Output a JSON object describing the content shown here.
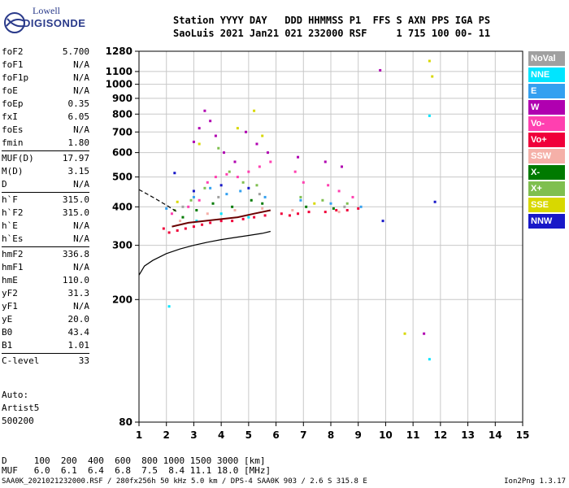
{
  "logo": {
    "line1": "Lowell",
    "line2": "DIGISONDE"
  },
  "header": {
    "labels_line": "Station YYYY DAY   DDD HHMMSS P1  FFS S AXN PPS IGA PS",
    "values_line": "SaoLuis 2021 Jan21 021 232000 RSF     1 715 100 00- 11"
  },
  "params": {
    "group1": [
      {
        "name": "foF2",
        "value": "5.700"
      },
      {
        "name": "foF1",
        "value": "N/A"
      },
      {
        "name": "foF1p",
        "value": "N/A"
      },
      {
        "name": "foE",
        "value": "N/A"
      },
      {
        "name": "foEp",
        "value": "0.35"
      },
      {
        "name": "fxI",
        "value": "6.05"
      },
      {
        "name": "foEs",
        "value": "N/A"
      },
      {
        "name": "fmin",
        "value": "1.80"
      }
    ],
    "group2": [
      {
        "name": "MUF(D)",
        "value": "17.97"
      },
      {
        "name": "M(D)",
        "value": "3.15"
      },
      {
        "name": "D",
        "value": "N/A"
      }
    ],
    "group3": [
      {
        "name": "h`F",
        "value": "315.0"
      },
      {
        "name": "h`F2",
        "value": "315.0"
      },
      {
        "name": "h`E",
        "value": "N/A"
      },
      {
        "name": "h`Es",
        "value": "N/A"
      }
    ],
    "group4": [
      {
        "name": "hmF2",
        "value": "336.8"
      },
      {
        "name": "hmF1",
        "value": "N/A"
      },
      {
        "name": "hmE",
        "value": "110.0"
      },
      {
        "name": "yF2",
        "value": "31.3"
      },
      {
        "name": "yF1",
        "value": "N/A"
      },
      {
        "name": "yE",
        "value": "20.0"
      },
      {
        "name": "B0",
        "value": "43.4"
      },
      {
        "name": "B1",
        "value": "1.01"
      }
    ],
    "group5": [
      {
        "name": "C-level",
        "value": "33"
      }
    ]
  },
  "auto": {
    "line1": "Auto:",
    "line2": "Artist5",
    "line3": "500200"
  },
  "legend": [
    {
      "label": "NoVal",
      "color": "#a0a0a0"
    },
    {
      "label": "NNE",
      "color": "#00e5ff"
    },
    {
      "label": "E",
      "color": "#33a0f0"
    },
    {
      "label": "W",
      "color": "#b000b0"
    },
    {
      "label": "Vo-",
      "color": "#ff40b0"
    },
    {
      "label": "Vo+",
      "color": "#f0003a"
    },
    {
      "label": "SSW",
      "color": "#f5b0a8"
    },
    {
      "label": "X-",
      "color": "#007a00"
    },
    {
      "label": "X+",
      "color": "#7fbf4f"
    },
    {
      "label": "SSE",
      "color": "#d8d800"
    },
    {
      "label": "NNW",
      "color": "#1818c8"
    }
  ],
  "bottom": {
    "line1": "D     100  200  400  600  800 1000 1500 3000 [km]",
    "line2": "MUF   6.0  6.1  6.4  6.8  7.5  8.4 11.1 18.0 [MHz]",
    "footer_left": "SAA0K_2021021232000.RSF / 280fx256h 50 kHz 5.0 km / DPS-4 SAA0K 903 / 2.6 S 315.8 E",
    "footer_right": "Ion2Png 1.3.17"
  },
  "chart_data": {
    "type": "scatter",
    "title": "",
    "xlabel": "",
    "ylabel": "",
    "xlim": [
      1,
      15
    ],
    "ylim": [
      80,
      1280
    ],
    "y_scale": "log",
    "x_ticks": [
      1,
      2,
      3,
      4,
      5,
      6,
      7,
      8,
      9,
      10,
      11,
      12,
      13,
      14,
      15
    ],
    "y_ticks": [
      80,
      200,
      300,
      400,
      500,
      600,
      700,
      800,
      900,
      1000,
      1100,
      1280
    ],
    "grid": true,
    "series": [
      {
        "name": "Vo+",
        "color": "#f0003a",
        "points": [
          [
            1.9,
            340
          ],
          [
            2.1,
            330
          ],
          [
            2.4,
            335
          ],
          [
            2.7,
            340
          ],
          [
            3.0,
            345
          ],
          [
            3.3,
            350
          ],
          [
            3.6,
            355
          ],
          [
            4.0,
            360
          ],
          [
            4.4,
            360
          ],
          [
            4.8,
            365
          ],
          [
            5.2,
            370
          ],
          [
            5.6,
            375
          ],
          [
            6.2,
            380
          ],
          [
            6.5,
            375
          ],
          [
            6.8,
            380
          ],
          [
            7.2,
            385
          ],
          [
            7.8,
            385
          ],
          [
            8.2,
            390
          ],
          [
            8.6,
            390
          ],
          [
            9.0,
            395
          ]
        ]
      },
      {
        "name": "Vo-",
        "color": "#ff40b0",
        "points": [
          [
            2.2,
            380
          ],
          [
            2.8,
            400
          ],
          [
            3.2,
            420
          ],
          [
            3.5,
            480
          ],
          [
            3.8,
            500
          ],
          [
            4.2,
            510
          ],
          [
            4.6,
            500
          ],
          [
            5.0,
            520
          ],
          [
            5.4,
            540
          ],
          [
            5.8,
            560
          ],
          [
            6.7,
            520
          ],
          [
            7.0,
            480
          ],
          [
            7.9,
            470
          ],
          [
            8.3,
            450
          ],
          [
            8.8,
            430
          ]
        ]
      },
      {
        "name": "W",
        "color": "#b000b0",
        "points": [
          [
            3.0,
            650
          ],
          [
            3.2,
            720
          ],
          [
            3.4,
            820
          ],
          [
            3.6,
            760
          ],
          [
            3.8,
            680
          ],
          [
            4.1,
            600
          ],
          [
            4.5,
            560
          ],
          [
            4.9,
            700
          ],
          [
            5.3,
            640
          ],
          [
            5.7,
            600
          ],
          [
            6.8,
            580
          ],
          [
            7.8,
            560
          ],
          [
            8.4,
            540
          ],
          [
            9.8,
            1110
          ],
          [
            11.4,
            155
          ]
        ]
      },
      {
        "name": "X+",
        "color": "#7fbf4f",
        "points": [
          [
            2.3,
            390
          ],
          [
            2.9,
            420
          ],
          [
            3.4,
            460
          ],
          [
            3.9,
            620
          ],
          [
            4.3,
            520
          ],
          [
            4.8,
            480
          ],
          [
            5.3,
            470
          ],
          [
            6.9,
            430
          ],
          [
            7.7,
            420
          ],
          [
            8.6,
            410
          ]
        ]
      },
      {
        "name": "X-",
        "color": "#007a00",
        "points": [
          [
            2.6,
            370
          ],
          [
            3.1,
            390
          ],
          [
            3.7,
            410
          ],
          [
            4.4,
            400
          ],
          [
            5.1,
            420
          ],
          [
            5.5,
            410
          ],
          [
            7.1,
            400
          ],
          [
            8.1,
            395
          ]
        ]
      },
      {
        "name": "E",
        "color": "#33a0f0",
        "points": [
          [
            2.0,
            395
          ],
          [
            3.0,
            430
          ],
          [
            3.6,
            460
          ],
          [
            4.2,
            440
          ],
          [
            4.7,
            450
          ],
          [
            5.6,
            430
          ],
          [
            6.9,
            420
          ],
          [
            8.0,
            410
          ],
          [
            9.1,
            400
          ]
        ]
      },
      {
        "name": "NNE",
        "color": "#00e5ff",
        "points": [
          [
            2.1,
            190
          ],
          [
            3.1,
            360
          ],
          [
            4.0,
            380
          ],
          [
            5.0,
            370
          ],
          [
            11.6,
            790
          ],
          [
            11.6,
            128
          ]
        ]
      },
      {
        "name": "SSE",
        "color": "#d8d800",
        "points": [
          [
            2.4,
            415
          ],
          [
            3.2,
            640
          ],
          [
            4.6,
            720
          ],
          [
            5.2,
            820
          ],
          [
            5.5,
            680
          ],
          [
            7.4,
            410
          ],
          [
            10.7,
            155
          ],
          [
            11.6,
            1190
          ],
          [
            11.7,
            1060
          ]
        ]
      },
      {
        "name": "SSW",
        "color": "#f5b0a8",
        "points": [
          [
            2.5,
            360
          ],
          [
            3.5,
            380
          ],
          [
            4.5,
            390
          ],
          [
            5.5,
            395
          ],
          [
            6.6,
            390
          ],
          [
            8.3,
            385
          ]
        ]
      },
      {
        "name": "NNW",
        "color": "#1818c8",
        "points": [
          [
            2.3,
            515
          ],
          [
            3.0,
            450
          ],
          [
            4.0,
            470
          ],
          [
            5.0,
            460
          ],
          [
            9.9,
            360
          ],
          [
            11.8,
            415
          ]
        ]
      },
      {
        "name": "NoVal",
        "color": "#a0a0a0",
        "points": [
          [
            2.6,
            400
          ],
          [
            3.9,
            430
          ],
          [
            5.4,
            440
          ],
          [
            8.5,
            400
          ]
        ]
      }
    ],
    "curves": [
      {
        "kind": "solid",
        "points": [
          [
            1.0,
            240
          ],
          [
            1.2,
            257
          ],
          [
            1.5,
            268
          ],
          [
            2.0,
            282
          ],
          [
            2.5,
            292
          ],
          [
            3.0,
            300
          ],
          [
            3.5,
            307
          ],
          [
            4.0,
            313
          ],
          [
            4.5,
            318
          ],
          [
            5.0,
            323
          ],
          [
            5.5,
            328
          ],
          [
            5.8,
            333
          ]
        ]
      },
      {
        "kind": "dashed",
        "points": [
          [
            1.0,
            455
          ],
          [
            1.3,
            440
          ],
          [
            1.6,
            425
          ],
          [
            2.0,
            405
          ],
          [
            2.4,
            385
          ]
        ]
      },
      {
        "kind": "solid-dark",
        "points": [
          [
            2.2,
            345
          ],
          [
            2.8,
            355
          ],
          [
            3.4,
            360
          ],
          [
            4.0,
            365
          ],
          [
            4.6,
            370
          ],
          [
            5.2,
            380
          ],
          [
            5.8,
            390
          ]
        ]
      }
    ]
  }
}
